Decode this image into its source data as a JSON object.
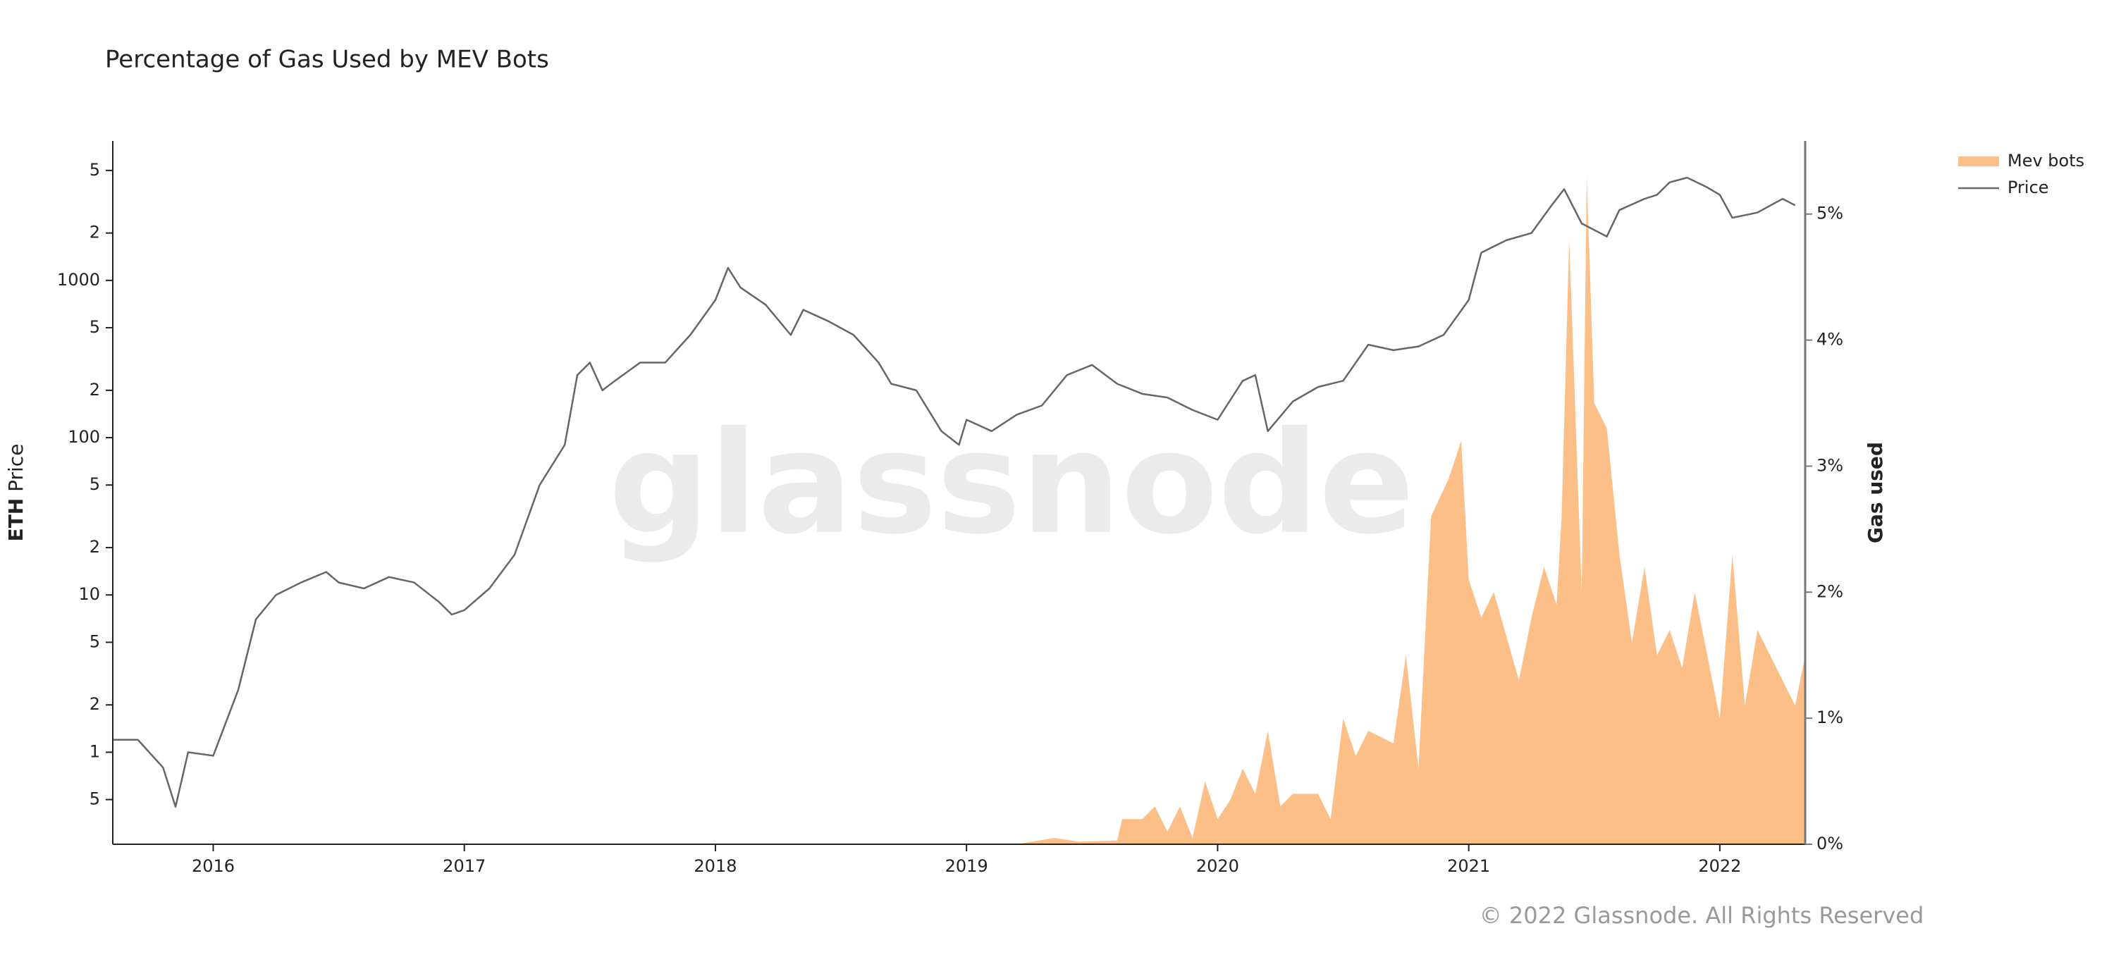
{
  "chart_data": {
    "type": "area-line",
    "title": "Percentage of Gas Used by MEV Bots",
    "watermark": "glassnode",
    "copyright": "© 2022 Glassnode. All Rights Reserved",
    "ylabel": [
      "ETH",
      "Price"
    ],
    "y2label": "Gas used",
    "legend": "top-right",
    "xlim": [
      2015.6,
      2022.34
    ],
    "xticks": [
      2016,
      2017,
      2018,
      2019,
      2020,
      2021,
      2022
    ],
    "ylim": [
      0.26,
      7700
    ],
    "log_y": true,
    "yticks": [
      {
        "value": 0.5,
        "label": "5"
      },
      1,
      2,
      5,
      10,
      {
        "value": 20,
        "label": "2"
      },
      {
        "value": 50,
        "label": "5"
      },
      100,
      {
        "value": 200,
        "label": "2"
      },
      {
        "value": 500,
        "label": "5"
      },
      1000,
      {
        "value": 2000,
        "label": "2"
      },
      {
        "value": 5000,
        "label": "5"
      }
    ],
    "y2lim": [
      0,
      5.58
    ],
    "y2ticks": [
      {
        "value": 0,
        "label": "0%"
      },
      {
        "value": 1,
        "label": "1%"
      },
      {
        "value": 2,
        "label": "2%"
      },
      {
        "value": 3,
        "label": "3%"
      },
      {
        "value": 4,
        "label": "4%"
      },
      {
        "value": 5,
        "label": "5%"
      }
    ],
    "series": [
      {
        "name": "Mev bots",
        "kind": "area",
        "axis": "y2",
        "color": "#fdbf88",
        "x": [
          2015.6,
          2019.2,
          2019.35,
          2019.45,
          2019.6,
          2019.62,
          2019.7,
          2019.75,
          2019.8,
          2019.85,
          2019.9,
          2019.95,
          2020.0,
          2020.05,
          2020.1,
          2020.15,
          2020.2,
          2020.25,
          2020.3,
          2020.4,
          2020.45,
          2020.5,
          2020.55,
          2020.6,
          2020.7,
          2020.75,
          2020.8,
          2020.85,
          2020.92,
          2020.97,
          2021.0,
          2021.05,
          2021.1,
          2021.2,
          2021.25,
          2021.3,
          2021.35,
          2021.37,
          2021.4,
          2021.45,
          2021.47,
          2021.5,
          2021.55,
          2021.6,
          2021.65,
          2021.7,
          2021.75,
          2021.8,
          2021.85,
          2021.9,
          2021.95,
          2022.0,
          2022.05,
          2022.1,
          2022.15,
          2022.2,
          2022.3,
          2022.34
        ],
        "values": [
          0,
          0,
          0.05,
          0.02,
          0.03,
          0.2,
          0.2,
          0.3,
          0.1,
          0.3,
          0.05,
          0.5,
          0.2,
          0.35,
          0.6,
          0.4,
          0.9,
          0.3,
          0.4,
          0.4,
          0.2,
          1.0,
          0.7,
          0.9,
          0.8,
          1.5,
          0.6,
          2.6,
          2.9,
          3.2,
          2.1,
          1.8,
          2.0,
          1.3,
          1.8,
          2.2,
          1.9,
          2.6,
          4.8,
          2.0,
          5.3,
          3.5,
          3.3,
          2.3,
          1.6,
          2.2,
          1.5,
          1.7,
          1.4,
          2.0,
          1.5,
          1.0,
          2.3,
          1.1,
          1.7,
          1.5,
          1.1,
          1.5
        ]
      },
      {
        "name": "Price",
        "kind": "line",
        "axis": "y",
        "color": "#666666",
        "x": [
          2015.6,
          2015.7,
          2015.8,
          2015.85,
          2015.9,
          2016.0,
          2016.1,
          2016.17,
          2016.25,
          2016.35,
          2016.45,
          2016.5,
          2016.6,
          2016.7,
          2016.8,
          2016.9,
          2016.95,
          2017.0,
          2017.1,
          2017.2,
          2017.3,
          2017.4,
          2017.45,
          2017.5,
          2017.55,
          2017.6,
          2017.7,
          2017.8,
          2017.9,
          2018.0,
          2018.05,
          2018.1,
          2018.2,
          2018.3,
          2018.35,
          2018.45,
          2018.55,
          2018.65,
          2018.7,
          2018.8,
          2018.9,
          2018.97,
          2019.0,
          2019.1,
          2019.2,
          2019.3,
          2019.4,
          2019.5,
          2019.6,
          2019.7,
          2019.8,
          2019.9,
          2020.0,
          2020.1,
          2020.15,
          2020.2,
          2020.3,
          2020.4,
          2020.5,
          2020.6,
          2020.7,
          2020.8,
          2020.9,
          2021.0,
          2021.05,
          2021.15,
          2021.25,
          2021.33,
          2021.38,
          2021.45,
          2021.55,
          2021.6,
          2021.7,
          2021.75,
          2021.8,
          2021.87,
          2021.95,
          2022.0,
          2022.05,
          2022.15,
          2022.25,
          2022.3
        ],
        "values": [
          1.2,
          1.2,
          0.8,
          0.45,
          1.0,
          0.95,
          2.5,
          7,
          10,
          12,
          14,
          12,
          11,
          13,
          12,
          9,
          7.5,
          8,
          11,
          18,
          50,
          90,
          250,
          300,
          200,
          230,
          300,
          300,
          450,
          750,
          1200,
          900,
          700,
          450,
          650,
          550,
          450,
          300,
          220,
          200,
          110,
          90,
          130,
          110,
          140,
          160,
          250,
          290,
          220,
          190,
          180,
          150,
          130,
          230,
          250,
          110,
          170,
          210,
          230,
          390,
          360,
          380,
          450,
          750,
          1500,
          1800,
          2000,
          3000,
          3800,
          2300,
          1900,
          2800,
          3300,
          3500,
          4200,
          4500,
          3900,
          3500,
          2500,
          2700,
          3300,
          3000
        ]
      }
    ]
  }
}
